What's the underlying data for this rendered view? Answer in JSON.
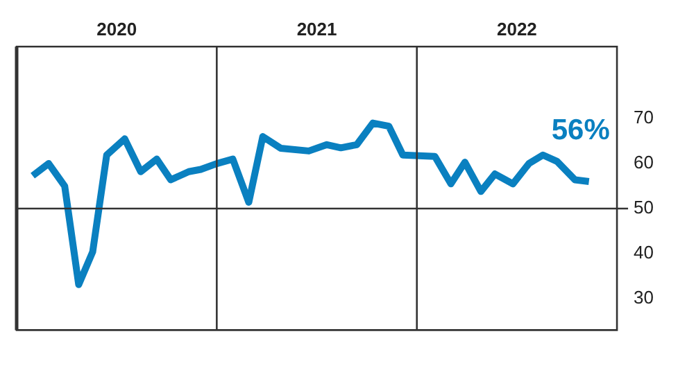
{
  "chart_data": {
    "type": "line",
    "x": [
      2020.08,
      2020.16,
      2020.24,
      2020.31,
      2020.38,
      2020.45,
      2020.54,
      2020.62,
      2020.7,
      2020.77,
      2020.86,
      2020.92,
      2021.0,
      2021.08,
      2021.16,
      2021.23,
      2021.32,
      2021.46,
      2021.55,
      2021.62,
      2021.7,
      2021.78,
      2021.86,
      2021.93,
      2022.09,
      2022.17,
      2022.24,
      2022.32,
      2022.39,
      2022.48,
      2022.56,
      2022.63,
      2022.7,
      2022.79,
      2022.86
    ],
    "series": [
      {
        "color": "#0a80c0",
        "values": [
          57.3,
          60,
          55,
          33.1,
          40.4,
          61.9,
          65.5,
          58.2,
          61,
          56.4,
          58.2,
          58.7,
          60,
          61,
          51.4,
          66,
          63.4,
          62.8,
          64.2,
          63.5,
          64.2,
          69,
          68.3,
          61.9,
          61.6,
          55.5,
          60.3,
          53.8,
          57.7,
          55.5,
          60,
          61.9,
          60.5,
          56.4,
          56
        ]
      }
    ],
    "xlim": [
      2020,
      2023
    ],
    "xticks": [
      {
        "value": 2020.5,
        "label": "2020"
      },
      {
        "value": 2021.5,
        "label": "2021"
      },
      {
        "value": 2022.5,
        "label": "2022"
      }
    ],
    "ylim": [
      23,
      86
    ],
    "yticks": [
      30,
      40,
      50,
      60,
      70
    ],
    "ref_lines": [
      {
        "axis": "y",
        "value": 50,
        "color": "#333333"
      },
      {
        "axis": "x",
        "value": 2021,
        "color": "#333333"
      },
      {
        "axis": "x",
        "value": 2022,
        "color": "#333333"
      }
    ],
    "annotations": [
      {
        "text": "56%",
        "x": 2022.86,
        "y": 56
      }
    ],
    "grid": false,
    "legend": false,
    "marker": "none",
    "line_style": "solid"
  }
}
